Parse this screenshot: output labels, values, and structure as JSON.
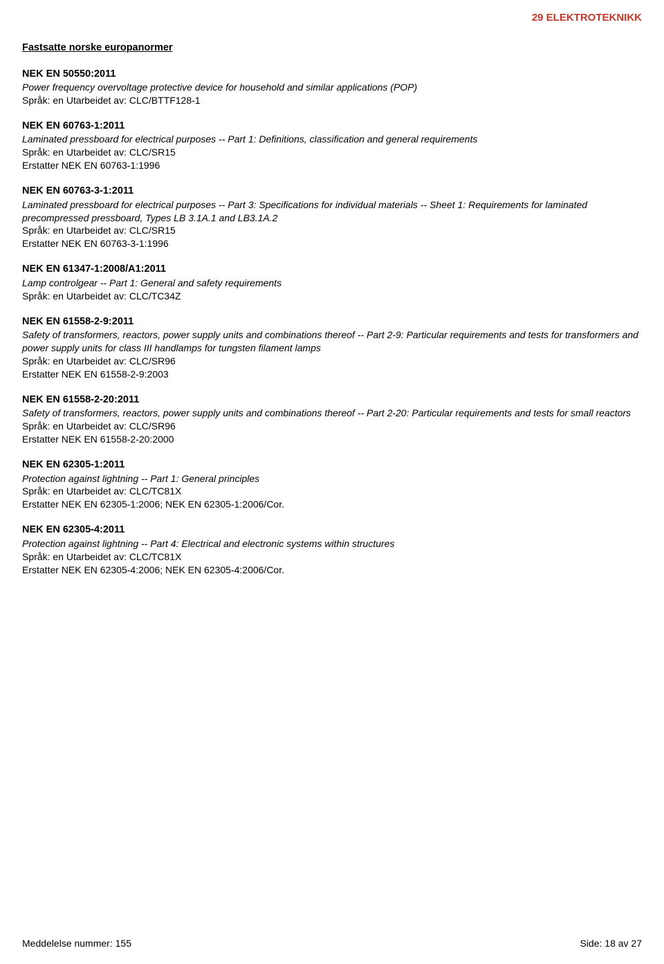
{
  "header": {
    "category": "29 ELEKTROTEKNIKK"
  },
  "sectionTitle": "Fastsatte norske europanormer",
  "labels": {
    "language": "Språk: en",
    "preparedBy": "Utarbeidet av:",
    "replaces": "Erstatter"
  },
  "standards": [
    {
      "code": "NEK EN 50550:2011",
      "desc": "Power frequency overvoltage protective device for household and similar applications (POP)",
      "committee": "CLC/BTTF128-1",
      "replaces": null
    },
    {
      "code": "NEK EN 60763-1:2011",
      "desc": "Laminated pressboard for electrical purposes -- Part 1: Definitions, classification and general requirements",
      "committee": "CLC/SR15",
      "replaces": "NEK EN 60763-1:1996"
    },
    {
      "code": "NEK EN 60763-3-1:2011",
      "desc": "Laminated pressboard for electrical purposes -- Part 3: Specifications for individual materials -- Sheet 1: Requirements for laminated precompressed pressboard, Types LB 3.1A.1 and LB3.1A.2",
      "committee": "CLC/SR15",
      "replaces": "NEK EN 60763-3-1:1996"
    },
    {
      "code": "NEK EN 61347-1:2008/A1:2011",
      "desc": "Lamp controlgear -- Part 1: General and safety requirements",
      "committee": "CLC/TC34Z",
      "replaces": null
    },
    {
      "code": "NEK EN 61558-2-9:2011",
      "desc": "Safety of transformers, reactors, power supply units and combinations thereof -- Part 2-9: Particular requirements and tests for transformers and power supply units for class III handlamps for tungsten filament lamps",
      "committee": "CLC/SR96",
      "replaces": "NEK EN 61558-2-9:2003"
    },
    {
      "code": "NEK EN 61558-2-20:2011",
      "desc": "Safety of transformers, reactors, power supply units and combinations thereof -- Part 2-20: Particular requirements and tests for small reactors",
      "committee": "CLC/SR96",
      "replaces": "NEK EN 61558-2-20:2000"
    },
    {
      "code": "NEK EN 62305-1:2011",
      "desc": "Protection against lightning -- Part 1: General principles",
      "committee": "CLC/TC81X",
      "replaces": "NEK EN 62305-1:2006; NEK EN 62305-1:2006/Cor."
    },
    {
      "code": "NEK EN 62305-4:2011",
      "desc": "Protection against lightning -- Part 4: Electrical and electronic systems within structures",
      "committee": "CLC/TC81X",
      "replaces": "NEK EN 62305-4:2006; NEK EN 62305-4:2006/Cor."
    }
  ],
  "footer": {
    "leftLabel": "Meddelelse nummer:",
    "leftValue": "155",
    "rightLabel": "Side:",
    "rightValue": "18 av 27"
  },
  "colors": {
    "headerColor": "#c0392b",
    "textColor": "#000000",
    "background": "#ffffff"
  }
}
